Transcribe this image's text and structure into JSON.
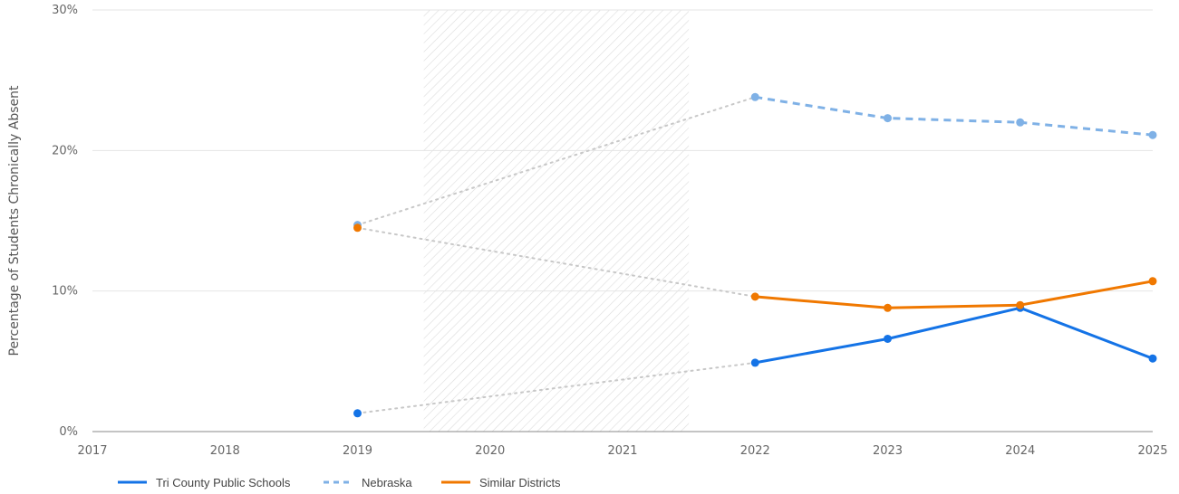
{
  "chart_data": {
    "type": "line",
    "title": "",
    "xlabel": "",
    "ylabel": "Percentage of Students Chronically Absent",
    "x": [
      2017,
      2018,
      2019,
      2020,
      2021,
      2022,
      2023,
      2024,
      2025
    ],
    "x_tick_labels": [
      "2017",
      "2018",
      "2019",
      "2020",
      "2021",
      "2022",
      "2023",
      "2024",
      "2025"
    ],
    "y_ticks": [
      0,
      10,
      20,
      30
    ],
    "y_tick_labels": [
      "0%",
      "10%",
      "20%",
      "30%"
    ],
    "ylim": [
      0,
      30
    ],
    "grid": true,
    "shaded_period": [
      2019.5,
      2021.5
    ],
    "legend_position": "bottom-left",
    "series": [
      {
        "name": "Tri County Public Schools",
        "color": "#1473e6",
        "style": "solid",
        "points": [
          [
            2019,
            1.3
          ],
          [
            2022,
            4.9
          ],
          [
            2023,
            6.6
          ],
          [
            2024,
            8.8
          ],
          [
            2025,
            5.2
          ]
        ]
      },
      {
        "name": "Nebraska",
        "color": "#7fb1e6",
        "style": "dashed",
        "points": [
          [
            2019,
            14.7
          ],
          [
            2022,
            23.8
          ],
          [
            2023,
            22.3
          ],
          [
            2024,
            22.0
          ],
          [
            2025,
            21.1
          ]
        ]
      },
      {
        "name": "Similar Districts",
        "color": "#f07800",
        "style": "solid",
        "points": [
          [
            2019,
            14.5
          ],
          [
            2022,
            9.6
          ],
          [
            2023,
            8.8
          ],
          [
            2024,
            9.0
          ],
          [
            2025,
            10.7
          ]
        ]
      }
    ],
    "gap_connector": {
      "from": 2019,
      "to": 2022,
      "color": "#c8c8c8",
      "style": "dotted"
    }
  }
}
